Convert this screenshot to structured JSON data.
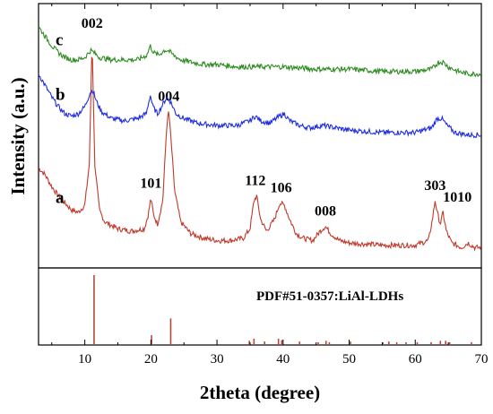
{
  "chart_data": [
    {
      "type": "line",
      "panel": "xrd-patterns",
      "xlabel": "2theta (degree)",
      "ylabel": "Intensity (a.u.)",
      "xlim": [
        3,
        70
      ],
      "grid": false,
      "series": [
        {
          "name": "a",
          "color": "#c0392b",
          "points": [
            [
              3,
              0.4
            ],
            [
              4,
              0.37
            ],
            [
              5,
              0.32
            ],
            [
              6,
              0.28
            ],
            [
              7,
              0.25
            ],
            [
              8,
              0.22
            ],
            [
              9,
              0.21
            ],
            [
              10,
              0.24
            ],
            [
              10.7,
              0.42
            ],
            [
              11.1,
              0.95
            ],
            [
              11.5,
              0.42
            ],
            [
              12.2,
              0.22
            ],
            [
              13,
              0.17
            ],
            [
              15,
              0.14
            ],
            [
              17,
              0.13
            ],
            [
              19,
              0.14
            ],
            [
              19.6,
              0.2
            ],
            [
              20,
              0.27
            ],
            [
              20.4,
              0.2
            ],
            [
              21,
              0.16
            ],
            [
              21.8,
              0.26
            ],
            [
              22.4,
              0.58
            ],
            [
              22.7,
              0.64
            ],
            [
              23.1,
              0.5
            ],
            [
              23.6,
              0.3
            ],
            [
              24.5,
              0.17
            ],
            [
              26,
              0.12
            ],
            [
              28,
              0.1
            ],
            [
              30,
              0.09
            ],
            [
              32,
              0.09
            ],
            [
              34,
              0.1
            ],
            [
              35,
              0.14
            ],
            [
              35.6,
              0.26
            ],
            [
              36,
              0.28
            ],
            [
              36.6,
              0.18
            ],
            [
              37.5,
              0.13
            ],
            [
              38.7,
              0.18
            ],
            [
              39.5,
              0.25
            ],
            [
              40.2,
              0.24
            ],
            [
              41,
              0.18
            ],
            [
              42,
              0.12
            ],
            [
              43,
              0.1
            ],
            [
              44.5,
              0.09
            ],
            [
              45.6,
              0.13
            ],
            [
              46.4,
              0.15
            ],
            [
              47.2,
              0.12
            ],
            [
              48.5,
              0.09
            ],
            [
              50,
              0.08
            ],
            [
              55,
              0.07
            ],
            [
              60,
              0.07
            ],
            [
              62,
              0.09
            ],
            [
              62.6,
              0.18
            ],
            [
              63,
              0.26
            ],
            [
              63.4,
              0.2
            ],
            [
              63.8,
              0.16
            ],
            [
              64.2,
              0.21
            ],
            [
              64.7,
              0.13
            ],
            [
              65.5,
              0.08
            ],
            [
              67,
              0.06
            ],
            [
              68,
              0.08
            ],
            [
              69,
              0.06
            ],
            [
              70,
              0.06
            ]
          ],
          "peaks": [
            {
              "label": "002",
              "x": 11.1
            },
            {
              "label": "101",
              "x": 20.0
            },
            {
              "label": "004",
              "x": 22.7
            },
            {
              "label": "112",
              "x": 35.8
            },
            {
              "label": "106",
              "x": 39.7
            },
            {
              "label": "008",
              "x": 46.4
            },
            {
              "label": "303",
              "x": 63.0
            },
            {
              "label": "1010",
              "x": 64.2
            }
          ]
        },
        {
          "name": "b",
          "color": "#1f2ee0",
          "points": [
            [
              3,
              0.8
            ],
            [
              4,
              0.75
            ],
            [
              5,
              0.7
            ],
            [
              6,
              0.66
            ],
            [
              7,
              0.63
            ],
            [
              8,
              0.62
            ],
            [
              9,
              0.63
            ],
            [
              10,
              0.66
            ],
            [
              10.8,
              0.72
            ],
            [
              11.2,
              0.73
            ],
            [
              11.8,
              0.68
            ],
            [
              12.5,
              0.64
            ],
            [
              14,
              0.61
            ],
            [
              16,
              0.6
            ],
            [
              18,
              0.61
            ],
            [
              19.3,
              0.63
            ],
            [
              19.9,
              0.71
            ],
            [
              20.3,
              0.66
            ],
            [
              21,
              0.63
            ],
            [
              21.8,
              0.67
            ],
            [
              22.4,
              0.7
            ],
            [
              23,
              0.68
            ],
            [
              23.8,
              0.63
            ],
            [
              25,
              0.61
            ],
            [
              27,
              0.59
            ],
            [
              30,
              0.58
            ],
            [
              33,
              0.58
            ],
            [
              35,
              0.6
            ],
            [
              35.8,
              0.62
            ],
            [
              36.6,
              0.6
            ],
            [
              38,
              0.59
            ],
            [
              39.5,
              0.62
            ],
            [
              40.2,
              0.63
            ],
            [
              41,
              0.6
            ],
            [
              42.5,
              0.58
            ],
            [
              44,
              0.57
            ],
            [
              46,
              0.58
            ],
            [
              48,
              0.57
            ],
            [
              50,
              0.56
            ],
            [
              55,
              0.55
            ],
            [
              60,
              0.55
            ],
            [
              62.5,
              0.57
            ],
            [
              63.3,
              0.61
            ],
            [
              64,
              0.61
            ],
            [
              64.8,
              0.58
            ],
            [
              66,
              0.55
            ],
            [
              68,
              0.54
            ],
            [
              70,
              0.54
            ]
          ]
        },
        {
          "name": "c",
          "color": "#2e8b22",
          "points": [
            [
              3,
              1.0
            ],
            [
              4,
              0.96
            ],
            [
              5,
              0.92
            ],
            [
              6,
              0.89
            ],
            [
              7,
              0.87
            ],
            [
              8,
              0.86
            ],
            [
              9,
              0.86
            ],
            [
              10,
              0.87
            ],
            [
              10.9,
              0.9
            ],
            [
              11.4,
              0.89
            ],
            [
              12.2,
              0.87
            ],
            [
              14,
              0.86
            ],
            [
              16,
              0.86
            ],
            [
              18,
              0.86
            ],
            [
              19.4,
              0.88
            ],
            [
              19.9,
              0.92
            ],
            [
              20.4,
              0.89
            ],
            [
              21.2,
              0.88
            ],
            [
              22,
              0.9
            ],
            [
              22.6,
              0.9
            ],
            [
              23.4,
              0.88
            ],
            [
              24.5,
              0.86
            ],
            [
              26,
              0.85
            ],
            [
              28,
              0.84
            ],
            [
              30,
              0.84
            ],
            [
              33,
              0.83
            ],
            [
              36,
              0.83
            ],
            [
              40,
              0.83
            ],
            [
              45,
              0.82
            ],
            [
              50,
              0.82
            ],
            [
              55,
              0.81
            ],
            [
              60,
              0.81
            ],
            [
              62.5,
              0.82
            ],
            [
              63.5,
              0.85
            ],
            [
              64.2,
              0.85
            ],
            [
              65,
              0.83
            ],
            [
              66.5,
              0.81
            ],
            [
              68,
              0.8
            ],
            [
              70,
              0.8
            ]
          ]
        }
      ],
      "series_tags": [
        "a",
        "b",
        "c"
      ]
    },
    {
      "type": "bar",
      "panel": "reference-pattern",
      "annotation": "PDF#51-0357:LiAl-LDHs",
      "color": "#b5473b",
      "xlim": [
        3,
        70
      ],
      "xticks": [
        10,
        20,
        30,
        40,
        50,
        60,
        70
      ],
      "x": [
        11.4,
        20.1,
        23.0,
        34.9,
        35.6,
        37.2,
        39.3,
        39.8,
        42.5,
        45.3,
        46.5,
        47.0,
        50.2,
        55.1,
        56.0,
        57.2,
        58.6,
        60.3,
        62.4,
        63.8,
        64.6,
        65.2,
        68.5
      ],
      "values": [
        100,
        14,
        38,
        6,
        9,
        5,
        9,
        7,
        5,
        4,
        6,
        4,
        5,
        4,
        5,
        4,
        4,
        4,
        4,
        6,
        6,
        4,
        4
      ]
    }
  ]
}
